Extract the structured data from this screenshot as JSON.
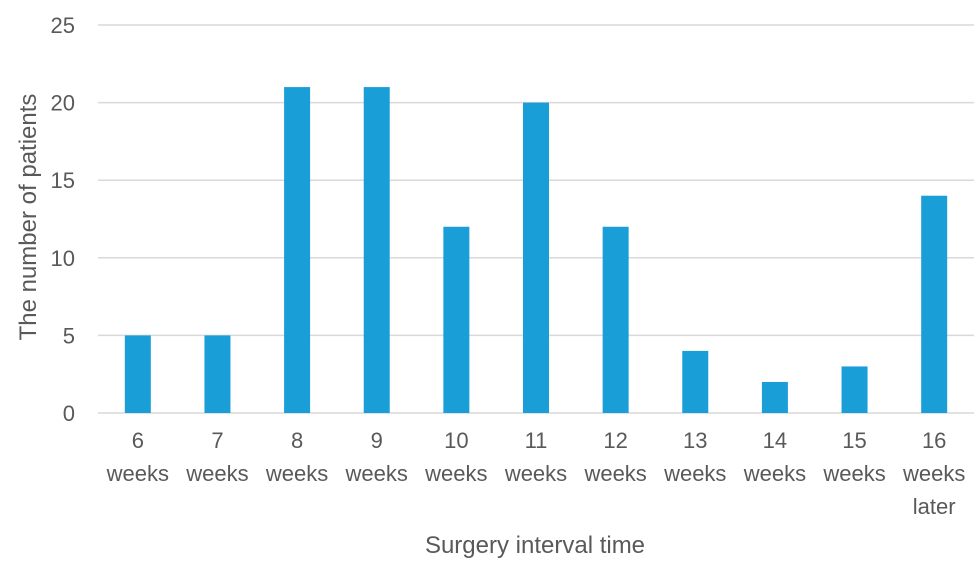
{
  "chart_data": {
    "type": "bar",
    "title": "",
    "xlabel": "Surgery interval time",
    "ylabel": "The number of patients",
    "categories": [
      [
        "6",
        "weeks"
      ],
      [
        "7",
        "weeks"
      ],
      [
        "8",
        "weeks"
      ],
      [
        "9",
        "weeks"
      ],
      [
        "10",
        "weeks"
      ],
      [
        "11",
        "weeks"
      ],
      [
        "12",
        "weeks"
      ],
      [
        "13",
        "weeks"
      ],
      [
        "14",
        "weeks"
      ],
      [
        "15",
        "weeks"
      ],
      [
        "16",
        "weeks",
        "later"
      ]
    ],
    "values": [
      5,
      5,
      21,
      21,
      12,
      20,
      12,
      4,
      2,
      3,
      14
    ],
    "ylim": [
      0,
      25
    ],
    "yticks": [
      0,
      5,
      10,
      15,
      20,
      25
    ],
    "grid": true,
    "legend": "none",
    "bar_color": "#199ed8",
    "grid_color": "#d9d9d9",
    "text_color": "#595959"
  }
}
